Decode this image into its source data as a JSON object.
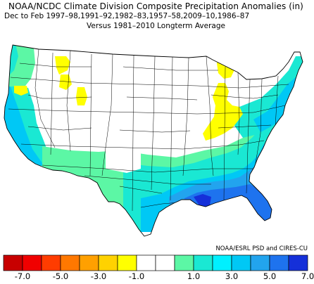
{
  "title": "NOAA/NCDC Climate Division Composite Precipitation Anomalies (in)",
  "season_line": "Dec to Feb  1997–98,1991–92,1982–83,1957–58,2009–10,1986–87",
  "subtitle": "Versus 1981–2010 Longterm Average",
  "credit": "NOAA/ESRL PSD and CIRES-CU",
  "colors": {
    "water": "#ffffff",
    "border": "#000000",
    "dry_light": "#ffff00",
    "wet_1": "#5cf7a5",
    "wet_2": "#1ae8d3",
    "wet_3": "#00c8f5",
    "wet_4": "#22a4ee",
    "wet_5": "#1e73ee",
    "wet_6": "#1530d9"
  },
  "legend": {
    "colors": [
      "#c80000",
      "#f00000",
      "#ff3c00",
      "#ff7800",
      "#ffa000",
      "#ffd200",
      "#ffff00",
      "#ffffff",
      "#ffffff",
      "#5cf7a5",
      "#1ae8d3",
      "#00f0ff",
      "#00c8f5",
      "#22a4ee",
      "#1e73ee",
      "#1530d9"
    ],
    "labels": [
      "-7.0",
      "-5.0",
      "-3.0",
      "-1.0",
      "1.0",
      "3.0",
      "5.0",
      "7.0"
    ]
  }
}
